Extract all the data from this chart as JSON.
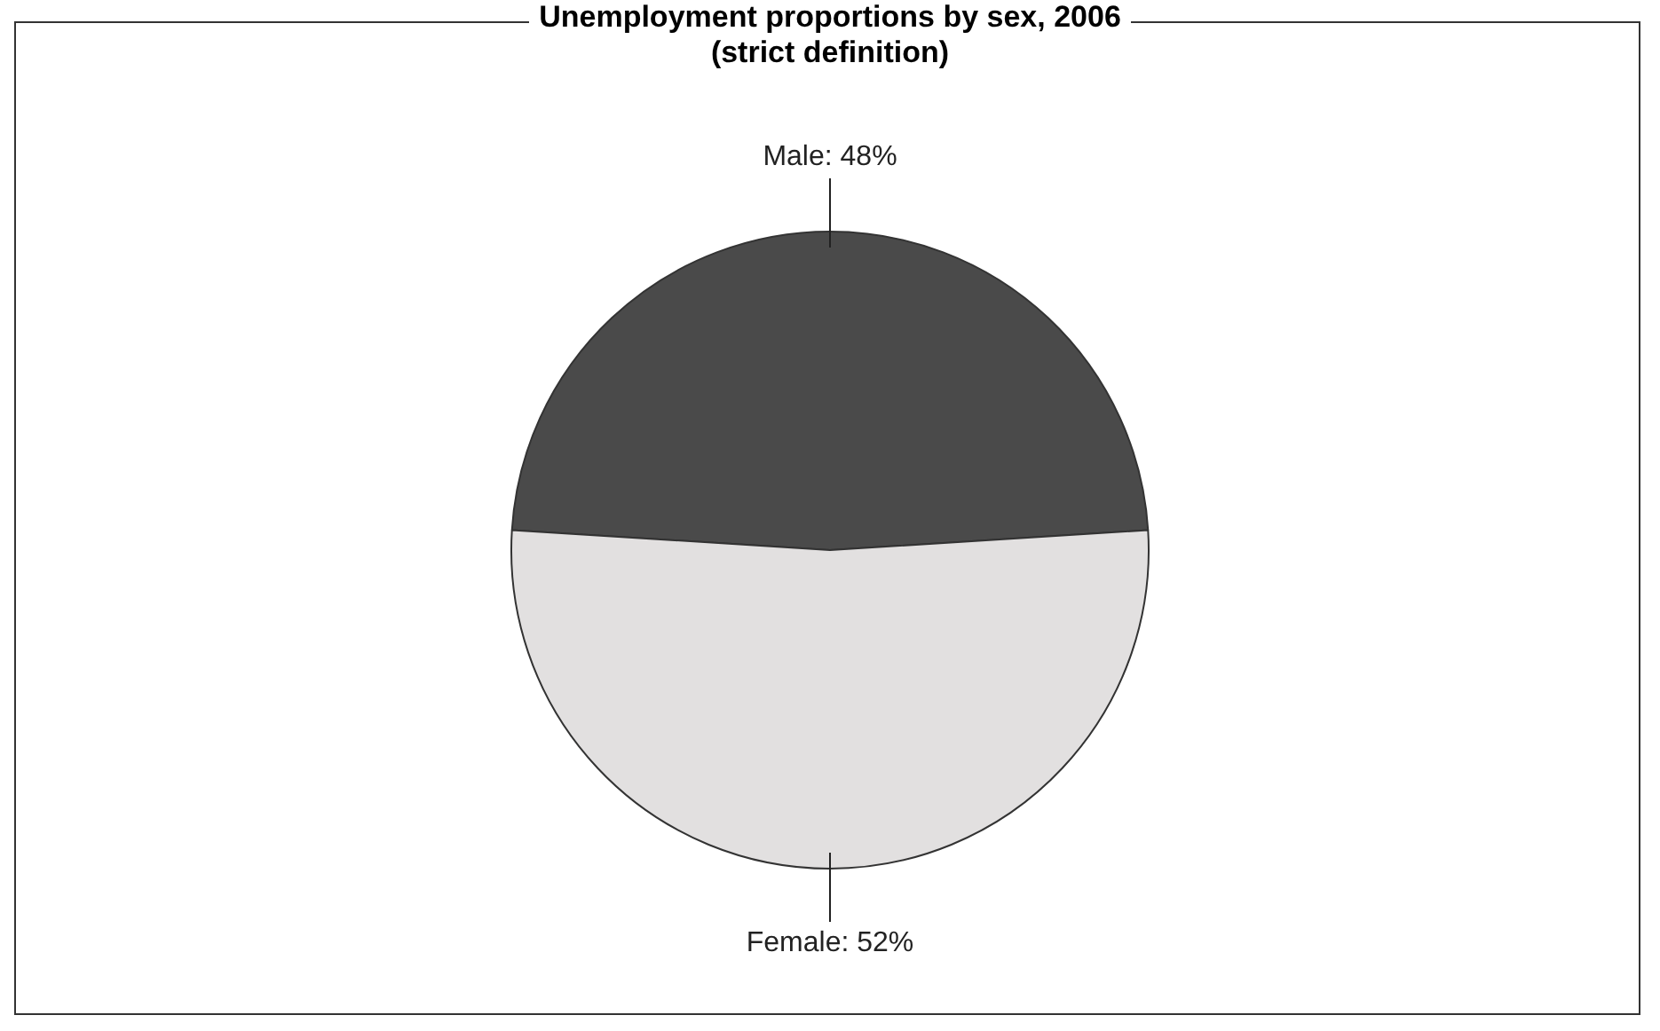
{
  "chart_data": {
    "type": "pie",
    "title": "Unemployment proportions by sex, 2006",
    "subtitle": "(strict definition)",
    "categories": [
      "Male: 48%",
      "Female: 52%"
    ],
    "values": [
      48,
      52
    ],
    "colors": [
      "#4a4a4a",
      "#e2e0e0"
    ],
    "legend": false
  }
}
